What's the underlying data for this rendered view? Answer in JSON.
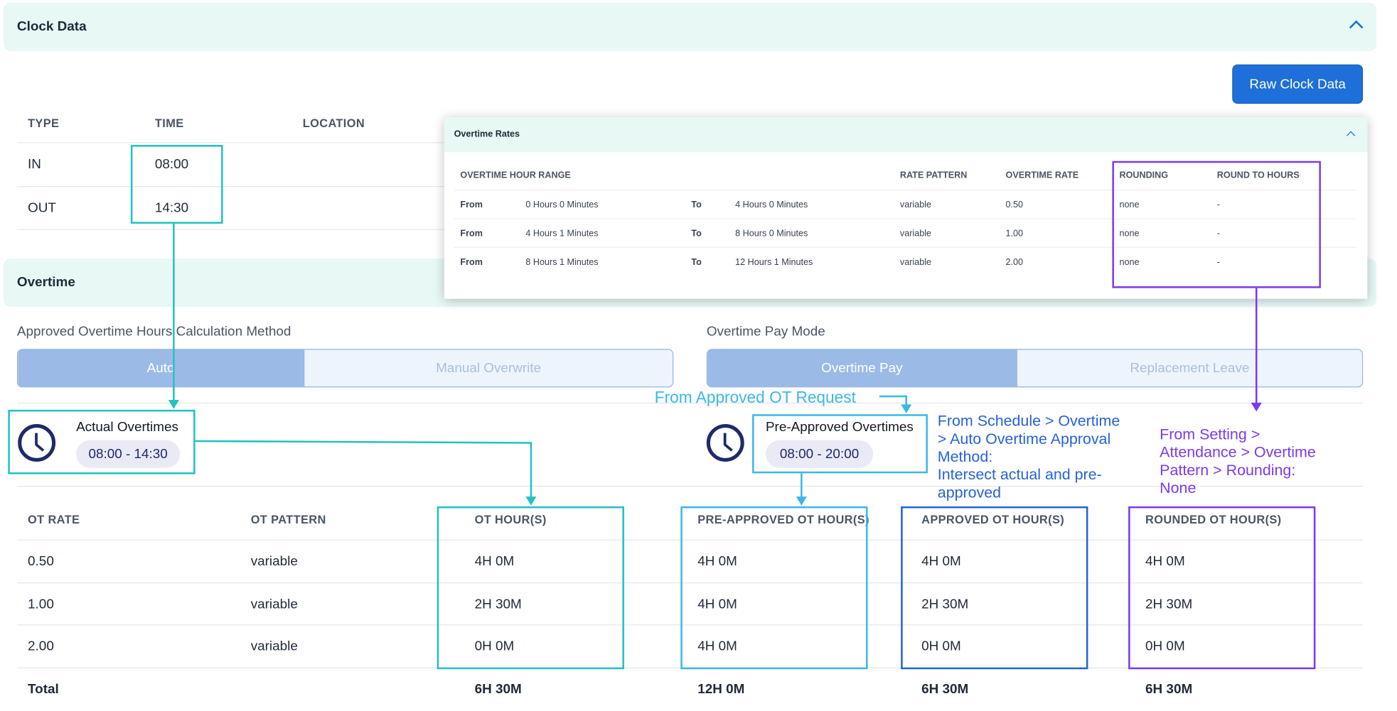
{
  "clock_data": {
    "title": "Clock Data",
    "raw_button": "Raw Clock Data",
    "headers": {
      "type": "TYPE",
      "time": "TIME",
      "location": "LOCATION"
    },
    "rows": [
      {
        "type": "IN",
        "time": "08:00"
      },
      {
        "type": "OUT",
        "time": "14:30"
      }
    ]
  },
  "overtime": {
    "title": "Overtime",
    "calc_method": {
      "label": "Approved Overtime Hours Calculation Method",
      "options": [
        "Auto",
        "Manual Overwrite"
      ],
      "selected": "Auto"
    },
    "pay_mode": {
      "label": "Overtime Pay Mode",
      "options": [
        "Overtime Pay",
        "Replacement Leave"
      ],
      "selected": "Overtime Pay"
    },
    "actual": {
      "title": "Actual Overtimes",
      "range": "08:00 - 14:30"
    },
    "pre_approved": {
      "title": "Pre-Approved Overtimes",
      "range": "08:00 - 20:00"
    },
    "table": {
      "headers": [
        "OT RATE",
        "OT PATTERN",
        "OT HOUR(S)",
        "PRE-APPROVED OT HOUR(S)",
        "APPROVED OT HOUR(S)",
        "ROUNDED OT HOUR(S)"
      ],
      "rows": [
        {
          "rate": "0.50",
          "pattern": "variable",
          "ot": "4H 0M",
          "pre": "4H 0M",
          "approved": "4H 0M",
          "rounded": "4H 0M"
        },
        {
          "rate": "1.00",
          "pattern": "variable",
          "ot": "2H 30M",
          "pre": "4H 0M",
          "approved": "2H 30M",
          "rounded": "2H 30M"
        },
        {
          "rate": "2.00",
          "pattern": "variable",
          "ot": "0H 0M",
          "pre": "4H 0M",
          "approved": "0H 0M",
          "rounded": "0H 0M"
        }
      ],
      "total": {
        "label": "Total",
        "ot": "6H 30M",
        "pre": "12H 0M",
        "approved": "6H 30M",
        "rounded": "6H 30M"
      }
    }
  },
  "overtime_rates": {
    "title": "Overtime Rates",
    "headers": {
      "range": "OVERTIME HOUR RANGE",
      "pattern": "RATE PATTERN",
      "rate": "OVERTIME RATE",
      "rounding": "ROUNDING",
      "round_to": "ROUND TO HOURS"
    },
    "rows": [
      {
        "from_label": "From",
        "from": "0 Hours 0 Minutes",
        "to_label": "To",
        "to": "4 Hours 0 Minutes",
        "pattern": "variable",
        "rate": "0.50",
        "rounding": "none",
        "round_to": "-"
      },
      {
        "from_label": "From",
        "from": "4 Hours 1 Minutes",
        "to_label": "To",
        "to": "8 Hours 0 Minutes",
        "pattern": "variable",
        "rate": "1.00",
        "rounding": "none",
        "round_to": "-"
      },
      {
        "from_label": "From",
        "from": "8 Hours 1 Minutes",
        "to_label": "To",
        "to": "12 Hours 1 Minutes",
        "pattern": "variable",
        "rate": "2.00",
        "rounding": "none",
        "round_to": "-"
      }
    ]
  },
  "annotations": {
    "from_ot_request": "From Approved OT Request",
    "schedule_note": [
      "From Schedule > Overtime",
      "> Auto Overtime Approval",
      "Method:",
      "Intersect actual and pre-",
      "approved"
    ],
    "setting_note": [
      "From Setting >",
      "Attendance > Overtime",
      "Pattern > Rounding:",
      "None"
    ]
  },
  "colors": {
    "teal": "#22c1c3",
    "light_blue": "#3db7e8",
    "blue": "#2563d9",
    "purple": "#7c3aed",
    "header_bg": "#e7f8f5",
    "primary": "#1e6fd9"
  },
  "icons": [
    "chevron-up-icon",
    "clock-icon"
  ]
}
